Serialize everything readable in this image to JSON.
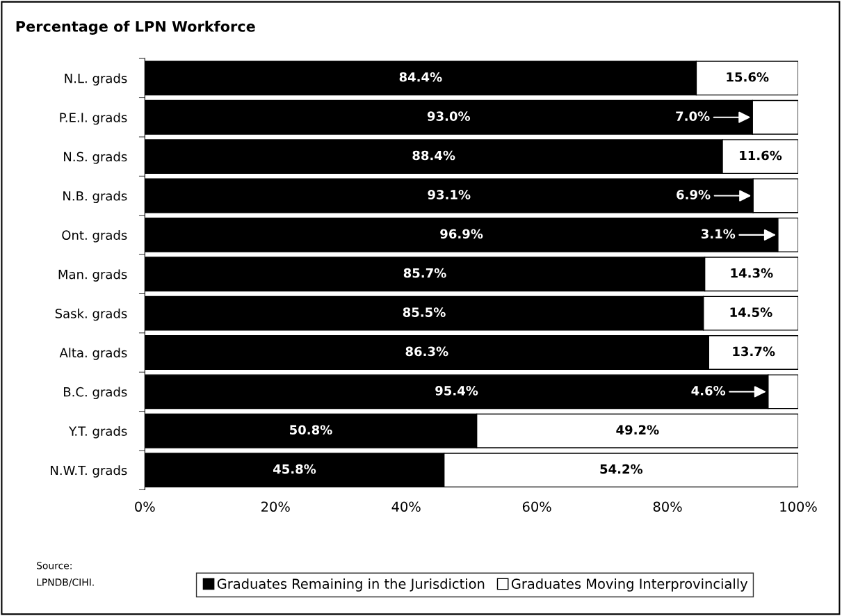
{
  "chart_data": {
    "type": "bar",
    "orientation": "horizontal",
    "stacked": true,
    "title": "Percentage of LPN Workforce",
    "categories": [
      "N.L. grads",
      "P.E.I. grads",
      "N.S. grads",
      "N.B. grads",
      "Ont. grads",
      "Man. grads",
      "Sask. grads",
      "Alta. grads",
      "B.C. grads",
      "Y.T. grads",
      "N.W.T. grads"
    ],
    "series": [
      {
        "name": "Graduates Remaining in the Jurisdiction",
        "color": "#000000",
        "values": [
          84.4,
          93.0,
          88.4,
          93.1,
          96.9,
          85.7,
          85.5,
          86.3,
          95.4,
          50.8,
          45.8
        ],
        "value_labels": [
          "84.4%",
          "93.0%",
          "88.4%",
          "93.1%",
          "96.9%",
          "85.7%",
          "85.5%",
          "86.3%",
          "95.4%",
          "50.8%",
          "45.8%"
        ]
      },
      {
        "name": "Graduates Moving Interprovincially",
        "color": "#ffffff",
        "values": [
          15.6,
          7.0,
          11.6,
          6.9,
          3.1,
          14.3,
          14.5,
          13.7,
          4.6,
          49.2,
          54.2
        ],
        "value_labels": [
          "15.6%",
          "7.0%",
          "11.6%",
          "6.9%",
          "3.1%",
          "14.3%",
          "14.5%",
          "13.7%",
          "4.6%",
          "49.2%",
          "54.2%"
        ]
      }
    ],
    "xlim": [
      0,
      100
    ],
    "xticks": [
      {
        "value": 0,
        "label": "0%"
      },
      {
        "value": 20,
        "label": "20%"
      },
      {
        "value": 40,
        "label": "40%"
      },
      {
        "value": 60,
        "label": "60%"
      },
      {
        "value": 80,
        "label": "80%"
      },
      {
        "value": 100,
        "label": "100%"
      }
    ],
    "grid": false,
    "legend": "bottom",
    "annotations": [
      "Source:\nLPNDB/CIHI."
    ]
  }
}
